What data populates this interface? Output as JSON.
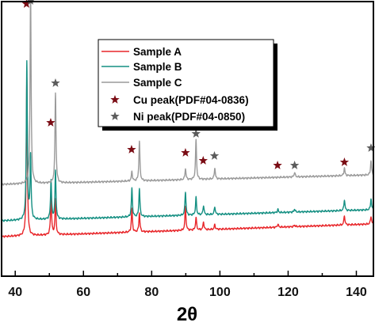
{
  "chart_data": {
    "type": "line",
    "title": "",
    "xlabel": "2θ",
    "ylabel": "",
    "xlim": [
      36,
      145
    ],
    "xticks": [
      40,
      60,
      80,
      100,
      120,
      140
    ],
    "xtick_labels": [
      "40",
      "60",
      "80",
      "100",
      "120",
      "140"
    ],
    "y_ticks_shown": false,
    "grid": false,
    "legend_position": "top-right",
    "series": [
      {
        "name": "Sample A",
        "color": "#e8262a",
        "baseline": 3,
        "baseline_end": 11,
        "peaks": [
          {
            "x": 43.4,
            "y": 100
          },
          {
            "x": 50.5,
            "y": 25
          },
          {
            "x": 51.8,
            "y": 22
          },
          {
            "x": 74.2,
            "y": 15
          },
          {
            "x": 76.4,
            "y": 12
          },
          {
            "x": 89.9,
            "y": 15
          },
          {
            "x": 93.0,
            "y": 8
          },
          {
            "x": 95.2,
            "y": 5
          },
          {
            "x": 98.5,
            "y": 3
          },
          {
            "x": 117.0,
            "y": 2
          },
          {
            "x": 121.9,
            "y": 1
          },
          {
            "x": 136.5,
            "y": 6
          },
          {
            "x": 144.3,
            "y": 5
          }
        ]
      },
      {
        "name": "Sample B",
        "color": "#148f82",
        "baseline": 13,
        "baseline_end": 20,
        "peaks": [
          {
            "x": 43.4,
            "y": 100
          },
          {
            "x": 44.5,
            "y": 40
          },
          {
            "x": 50.5,
            "y": 25
          },
          {
            "x": 51.8,
            "y": 30
          },
          {
            "x": 74.2,
            "y": 18
          },
          {
            "x": 76.4,
            "y": 18
          },
          {
            "x": 89.9,
            "y": 15
          },
          {
            "x": 93.0,
            "y": 11
          },
          {
            "x": 95.2,
            "y": 6
          },
          {
            "x": 98.5,
            "y": 5
          },
          {
            "x": 117.0,
            "y": 2
          },
          {
            "x": 121.9,
            "y": 2
          },
          {
            "x": 136.5,
            "y": 7
          },
          {
            "x": 144.3,
            "y": 7
          }
        ]
      },
      {
        "name": "Sample C",
        "color": "#9a9a9a",
        "baseline": 36,
        "baseline_end": 42,
        "peaks": [
          {
            "x": 44.5,
            "y": 122
          },
          {
            "x": 51.8,
            "y": 57
          },
          {
            "x": 76.4,
            "y": 25
          },
          {
            "x": 74.2,
            "y": 6
          },
          {
            "x": 89.9,
            "y": 7
          },
          {
            "x": 93.0,
            "y": 25
          },
          {
            "x": 98.5,
            "y": 7
          },
          {
            "x": 121.9,
            "y": 3
          },
          {
            "x": 136.5,
            "y": 5
          },
          {
            "x": 144.3,
            "y": 9
          }
        ]
      },
      {
        "name": "Cu peak(PDF#04-0836)",
        "color": "#7a0c14",
        "marker": "star",
        "points": [
          {
            "x": 43.3,
            "y": 150
          },
          {
            "x": 50.4,
            "y": 75
          },
          {
            "x": 74.1,
            "y": 58
          },
          {
            "x": 89.9,
            "y": 56
          },
          {
            "x": 95.1,
            "y": 51
          },
          {
            "x": 116.9,
            "y": 48
          },
          {
            "x": 136.5,
            "y": 50
          }
        ]
      },
      {
        "name": "Ni peak(PDF#04-0850)",
        "color": "#5c5c5c",
        "marker": "star",
        "points": [
          {
            "x": 44.5,
            "y": 152
          },
          {
            "x": 51.8,
            "y": 100
          },
          {
            "x": 76.4,
            "y": 73
          },
          {
            "x": 93.0,
            "y": 68
          },
          {
            "x": 98.4,
            "y": 54
          },
          {
            "x": 121.9,
            "y": 48
          },
          {
            "x": 144.3,
            "y": 59
          }
        ]
      }
    ]
  }
}
